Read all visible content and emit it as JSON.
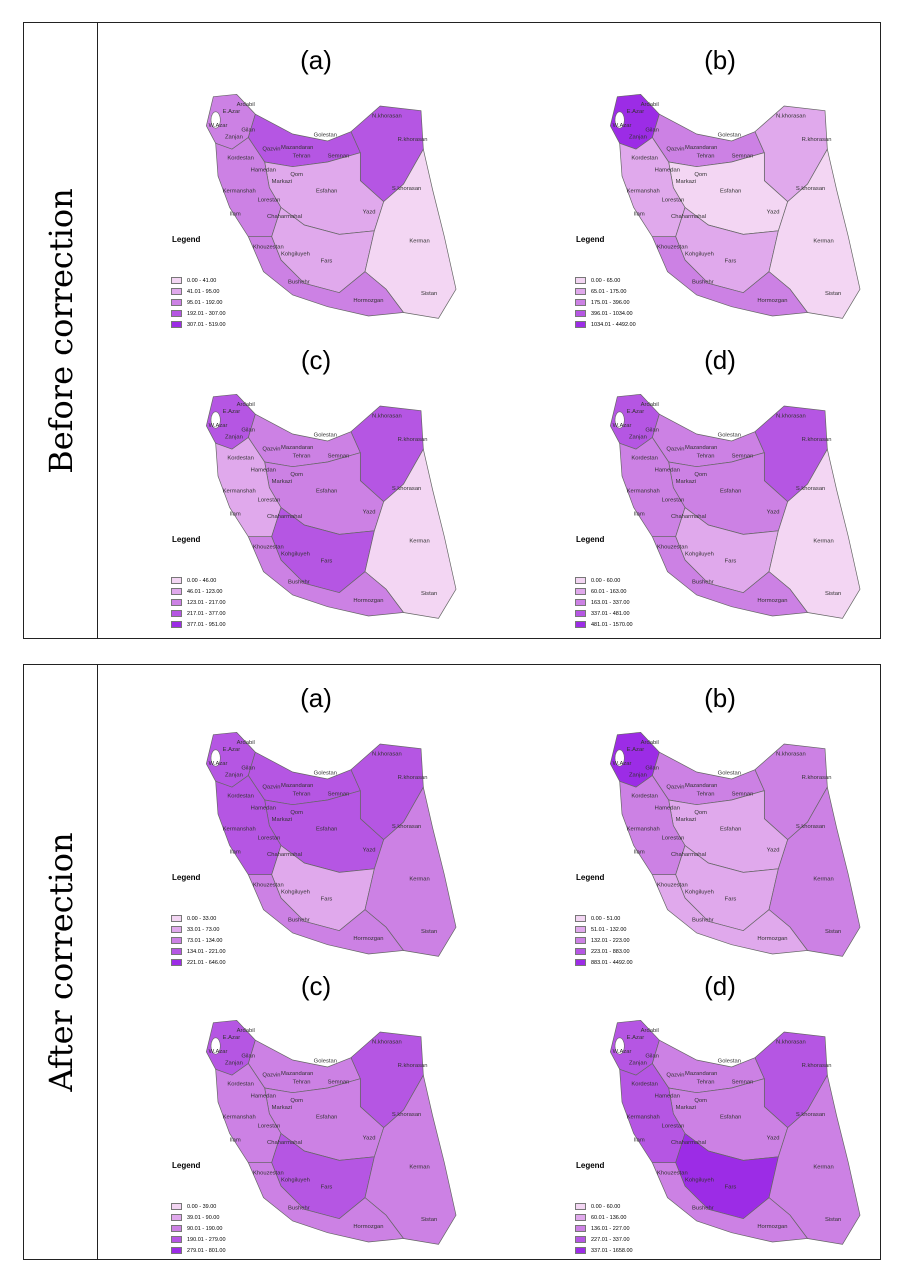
{
  "sections": [
    {
      "label": "Before correction",
      "panels": [
        {
          "title": "(a)",
          "legend_title": "Legend",
          "classes": [
            "0.00 - 41.00",
            "41.01 - 95.00",
            "95.01 - 192.00",
            "192.01 - 307.00",
            "307.01 - 519.00"
          ],
          "region_classes": {
            "northwest": 2,
            "north": 3,
            "east": 3,
            "center": 1,
            "west": 2,
            "south": 1,
            "southeast": 0,
            "coast": 2
          }
        },
        {
          "title": "(b)",
          "legend_title": "Legend",
          "classes": [
            "0.00 - 65.00",
            "65.01 - 175.00",
            "175.01 - 396.00",
            "396.01 - 1034.00",
            "1034.01 - 4492.00"
          ],
          "region_classes": {
            "northwest": 4,
            "north": 2,
            "east": 1,
            "center": 0,
            "west": 1,
            "south": 1,
            "southeast": 0,
            "coast": 2
          }
        },
        {
          "title": "(c)",
          "legend_title": "Legend",
          "classes": [
            "0.00 - 46.00",
            "46.01 - 123.00",
            "123.01 - 217.00",
            "217.01 - 377.00",
            "377.01 - 951.00"
          ],
          "region_classes": {
            "northwest": 3,
            "north": 2,
            "east": 3,
            "center": 2,
            "west": 1,
            "south": 3,
            "southeast": 0,
            "coast": 2
          }
        },
        {
          "title": "(d)",
          "legend_title": "Legend",
          "classes": [
            "0.00 - 60.00",
            "60.01 - 163.00",
            "163.01 - 337.00",
            "337.01 - 481.00",
            "481.01 - 1570.00"
          ],
          "region_classes": {
            "northwest": 3,
            "north": 2,
            "east": 3,
            "center": 2,
            "west": 2,
            "south": 1,
            "southeast": 0,
            "coast": 2
          }
        }
      ]
    },
    {
      "label": "After correction",
      "panels": [
        {
          "title": "(a)",
          "legend_title": "Legend",
          "classes": [
            "0.00 - 33.00",
            "33.01 - 73.00",
            "73.01 - 134.00",
            "134.01 - 221.00",
            "221.01 - 646.00"
          ],
          "region_classes": {
            "northwest": 3,
            "north": 3,
            "east": 3,
            "center": 3,
            "west": 3,
            "south": 1,
            "southeast": 2,
            "coast": 2
          }
        },
        {
          "title": "(b)",
          "legend_title": "Legend",
          "classes": [
            "0.00 - 51.00",
            "51.01 - 132.00",
            "132.01 - 223.00",
            "223.01 - 883.00",
            "883.01 - 4492.00"
          ],
          "region_classes": {
            "northwest": 4,
            "north": 2,
            "east": 2,
            "center": 1,
            "west": 2,
            "south": 1,
            "southeast": 2,
            "coast": 1
          }
        },
        {
          "title": "(c)",
          "legend_title": "Legend",
          "classes": [
            "0.00 - 39.00",
            "39.01 - 90.00",
            "90.01 - 190.00",
            "190.01 - 279.00",
            "279.01 - 801.00"
          ],
          "region_classes": {
            "northwest": 3,
            "north": 2,
            "east": 3,
            "center": 2,
            "west": 2,
            "south": 3,
            "southeast": 2,
            "coast": 2
          }
        },
        {
          "title": "(d)",
          "legend_title": "Legend",
          "classes": [
            "0.00 - 60.00",
            "60.01 - 136.00",
            "136.01 - 227.00",
            "227.01 - 337.00",
            "337.01 - 1658.00"
          ],
          "region_classes": {
            "northwest": 3,
            "north": 2,
            "east": 3,
            "center": 2,
            "west": 3,
            "south": 4,
            "southeast": 2,
            "coast": 2
          }
        }
      ]
    }
  ],
  "province_labels": [
    "E.Azar",
    "W.Azar",
    "Ardabil",
    "Zanjan",
    "Gilan",
    "Mazandaran",
    "Golestan",
    "N.khorasan",
    "R.khorasan",
    "S.khorasan",
    "Semnan",
    "Tehran",
    "Qom",
    "Qazvin",
    "Markazi",
    "Hamedan",
    "Kordestan",
    "Kermanshah",
    "Ilam",
    "Lorestan",
    "Esfahan",
    "Chaharmahal",
    "Khouzestan",
    "Kohgiluyeh",
    "Bushehr",
    "Fars",
    "Yazd",
    "Kerman",
    "Hormozgan",
    "Sistan"
  ],
  "colors": [
    "#f3d6f3",
    "#e0a9ec",
    "#cc81e4",
    "#b556e3",
    "#9c2ce6"
  ]
}
